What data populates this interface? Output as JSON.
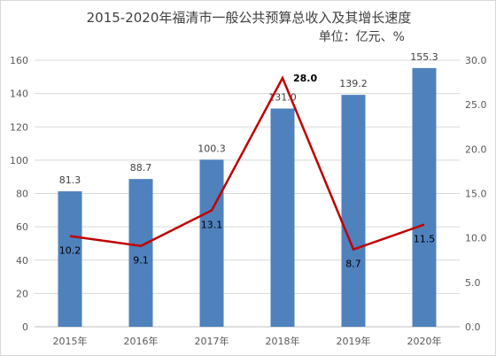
{
  "chart_data": {
    "type": "bar",
    "title": "2015-2020年福清市一般公共预算总收入及其增长速度",
    "subtitle": "单位：亿元、%",
    "categories": [
      "2015年",
      "2016年",
      "2017年",
      "2018年",
      "2019年",
      "2020年"
    ],
    "series": [
      {
        "type": "bar",
        "axis": "left",
        "color": "#4f81bd",
        "values": [
          81.3,
          88.7,
          100.3,
          131.0,
          139.2,
          155.3
        ],
        "labels": [
          "81.3",
          "88.7",
          "100.3",
          "131.0",
          "139.2",
          "155.3"
        ]
      },
      {
        "type": "line",
        "axis": "right",
        "color": "#c00000",
        "values": [
          10.2,
          9.1,
          13.1,
          28.0,
          8.7,
          11.5
        ],
        "labels": [
          "10.2",
          "9.1",
          "13.1",
          "28.0",
          "8.7",
          "11.5"
        ]
      }
    ],
    "y_left": {
      "min": 0,
      "max": 160,
      "step": 20,
      "ticks": [
        "0",
        "20",
        "40",
        "60",
        "80",
        "100",
        "120",
        "140",
        "160"
      ]
    },
    "y_right": {
      "min": 0,
      "max": 30,
      "step": 5,
      "ticks": [
        "0.0",
        "5.0",
        "10.0",
        "15.0",
        "20.0",
        "25.0",
        "30.0"
      ]
    },
    "grid": true
  }
}
